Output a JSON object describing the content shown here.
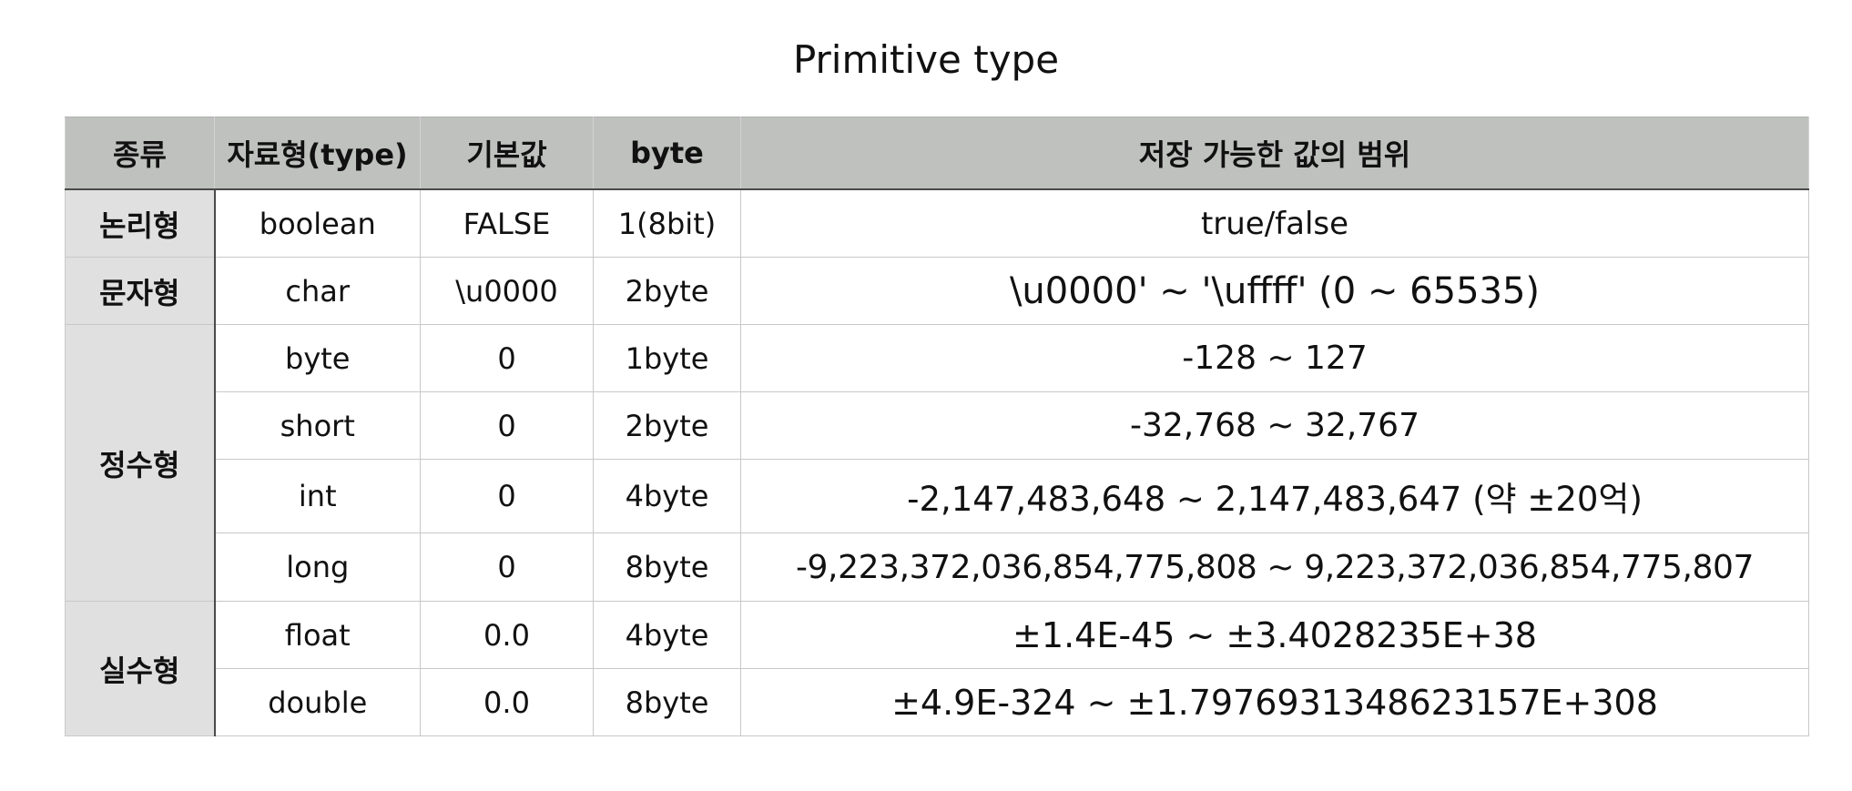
{
  "title": "Primitive type",
  "table": {
    "headers": [
      "종류",
      "자료형(type)",
      "기본값",
      "byte",
      "저장 가능한 값의 범위"
    ],
    "groups": [
      {
        "kind": "논리형",
        "rows": [
          {
            "type": "boolean",
            "default": "FALSE",
            "byte": "1(8bit)",
            "range": "true/false"
          }
        ]
      },
      {
        "kind": "문자형",
        "rows": [
          {
            "type": "char",
            "default": "\\u0000",
            "byte": "2byte",
            "range": "\\u0000' ~ '\\uffff' (0 ~ 65535)"
          }
        ]
      },
      {
        "kind": "정수형",
        "rows": [
          {
            "type": "byte",
            "default": "0",
            "byte": "1byte",
            "range": "-128 ~ 127"
          },
          {
            "type": "short",
            "default": "0",
            "byte": "2byte",
            "range": "-32,768 ~ 32,767"
          },
          {
            "type": "int",
            "default": "0",
            "byte": "4byte",
            "range": "-2,147,483,648 ~ 2,147,483,647 (약 ±20억)"
          },
          {
            "type": "long",
            "default": "0",
            "byte": "8byte",
            "range": "-9,223,372,036,854,775,808 ~ 9,223,372,036,854,775,807"
          }
        ]
      },
      {
        "kind": "실수형",
        "rows": [
          {
            "type": "float",
            "default": "0.0",
            "byte": "4byte",
            "range": "±1.4E-45 ~ ±3.4028235E+38"
          },
          {
            "type": "double",
            "default": "0.0",
            "byte": "8byte",
            "range": "±4.9E-324 ~ ±1.7976931348623157E+308"
          }
        ]
      }
    ]
  }
}
